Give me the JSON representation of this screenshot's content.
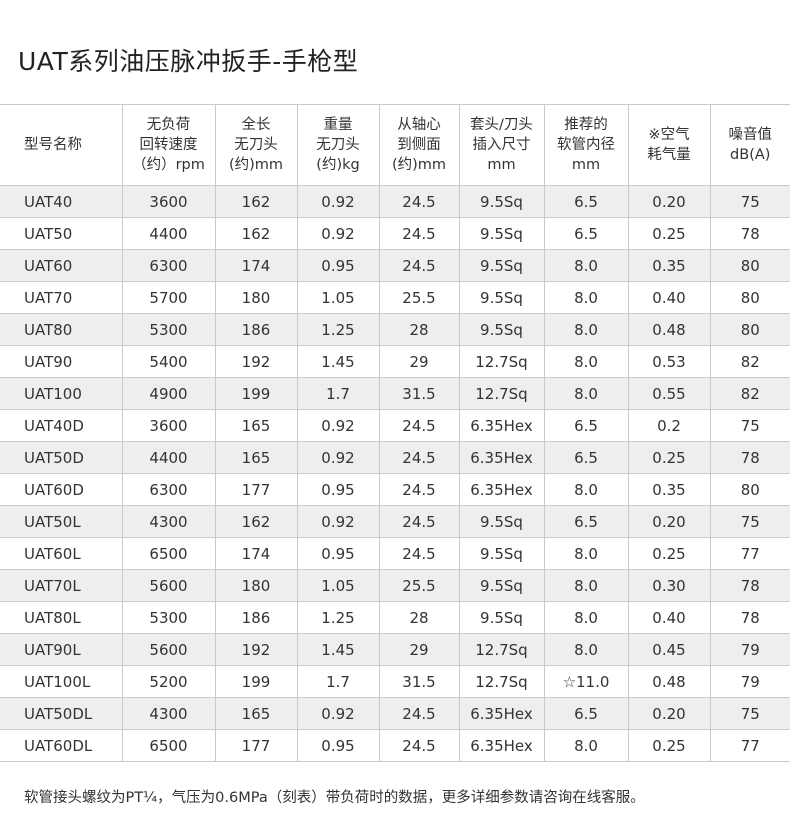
{
  "title": "UAT系列油压脉冲扳手-手枪型",
  "headers": [
    [
      "型号名称"
    ],
    [
      "无负荷",
      "回转速度",
      "（约）rpm"
    ],
    [
      "全长",
      "无刀头",
      "(约)mm"
    ],
    [
      "重量",
      "无刀头",
      "(约)kg"
    ],
    [
      "从轴心",
      "到侧面",
      "(约)mm"
    ],
    [
      "套头/刀头",
      "插入尺寸",
      "mm"
    ],
    [
      "推荐的",
      "软管内径",
      "mm"
    ],
    [
      "※空气",
      "耗气量"
    ],
    [
      "噪音值",
      "dB(A)"
    ]
  ],
  "rows": [
    [
      "UAT40",
      "3600",
      "162",
      "0.92",
      "24.5",
      "9.5Sq",
      "6.5",
      "0.20",
      "75"
    ],
    [
      "UAT50",
      "4400",
      "162",
      "0.92",
      "24.5",
      "9.5Sq",
      "6.5",
      "0.25",
      "78"
    ],
    [
      "UAT60",
      "6300",
      "174",
      "0.95",
      "24.5",
      "9.5Sq",
      "8.0",
      "0.35",
      "80"
    ],
    [
      "UAT70",
      "5700",
      "180",
      "1.05",
      "25.5",
      "9.5Sq",
      "8.0",
      "0.40",
      "80"
    ],
    [
      "UAT80",
      "5300",
      "186",
      "1.25",
      "28",
      "9.5Sq",
      "8.0",
      "0.48",
      "80"
    ],
    [
      "UAT90",
      "5400",
      "192",
      "1.45",
      "29",
      "12.7Sq",
      "8.0",
      "0.53",
      "82"
    ],
    [
      "UAT100",
      "4900",
      "199",
      "1.7",
      "31.5",
      "12.7Sq",
      "8.0",
      "0.55",
      "82"
    ],
    [
      "UAT40D",
      "3600",
      "165",
      "0.92",
      "24.5",
      "6.35Hex",
      "6.5",
      "0.2",
      "75"
    ],
    [
      "UAT50D",
      "4400",
      "165",
      "0.92",
      "24.5",
      "6.35Hex",
      "6.5",
      "0.25",
      "78"
    ],
    [
      "UAT60D",
      "6300",
      "177",
      "0.95",
      "24.5",
      "6.35Hex",
      "8.0",
      "0.35",
      "80"
    ],
    [
      "UAT50L",
      "4300",
      "162",
      "0.92",
      "24.5",
      "9.5Sq",
      "6.5",
      "0.20",
      "75"
    ],
    [
      "UAT60L",
      "6500",
      "174",
      "0.95",
      "24.5",
      "9.5Sq",
      "8.0",
      "0.25",
      "77"
    ],
    [
      "UAT70L",
      "5600",
      "180",
      "1.05",
      "25.5",
      "9.5Sq",
      "8.0",
      "0.30",
      "78"
    ],
    [
      "UAT80L",
      "5300",
      "186",
      "1.25",
      "28",
      "9.5Sq",
      "8.0",
      "0.40",
      "78"
    ],
    [
      "UAT90L",
      "5600",
      "192",
      "1.45",
      "29",
      "12.7Sq",
      "8.0",
      "0.45",
      "79"
    ],
    [
      "UAT100L",
      "5200",
      "199",
      "1.7",
      "31.5",
      "12.7Sq",
      "☆11.0",
      "0.48",
      "79"
    ],
    [
      "UAT50DL",
      "4300",
      "165",
      "0.92",
      "24.5",
      "6.35Hex",
      "6.5",
      "0.20",
      "75"
    ],
    [
      "UAT60DL",
      "6500",
      "177",
      "0.95",
      "24.5",
      "6.35Hex",
      "8.0",
      "0.25",
      "77"
    ]
  ],
  "footnote": "软管接头螺纹为PT¼，气压为0.6MPa（刻表）带负荷时的数据，更多详细参数请咨询在线客服。",
  "colors": {
    "row_shade": "#eeeeee",
    "border": "#c9c9c9",
    "text": "#333333"
  }
}
